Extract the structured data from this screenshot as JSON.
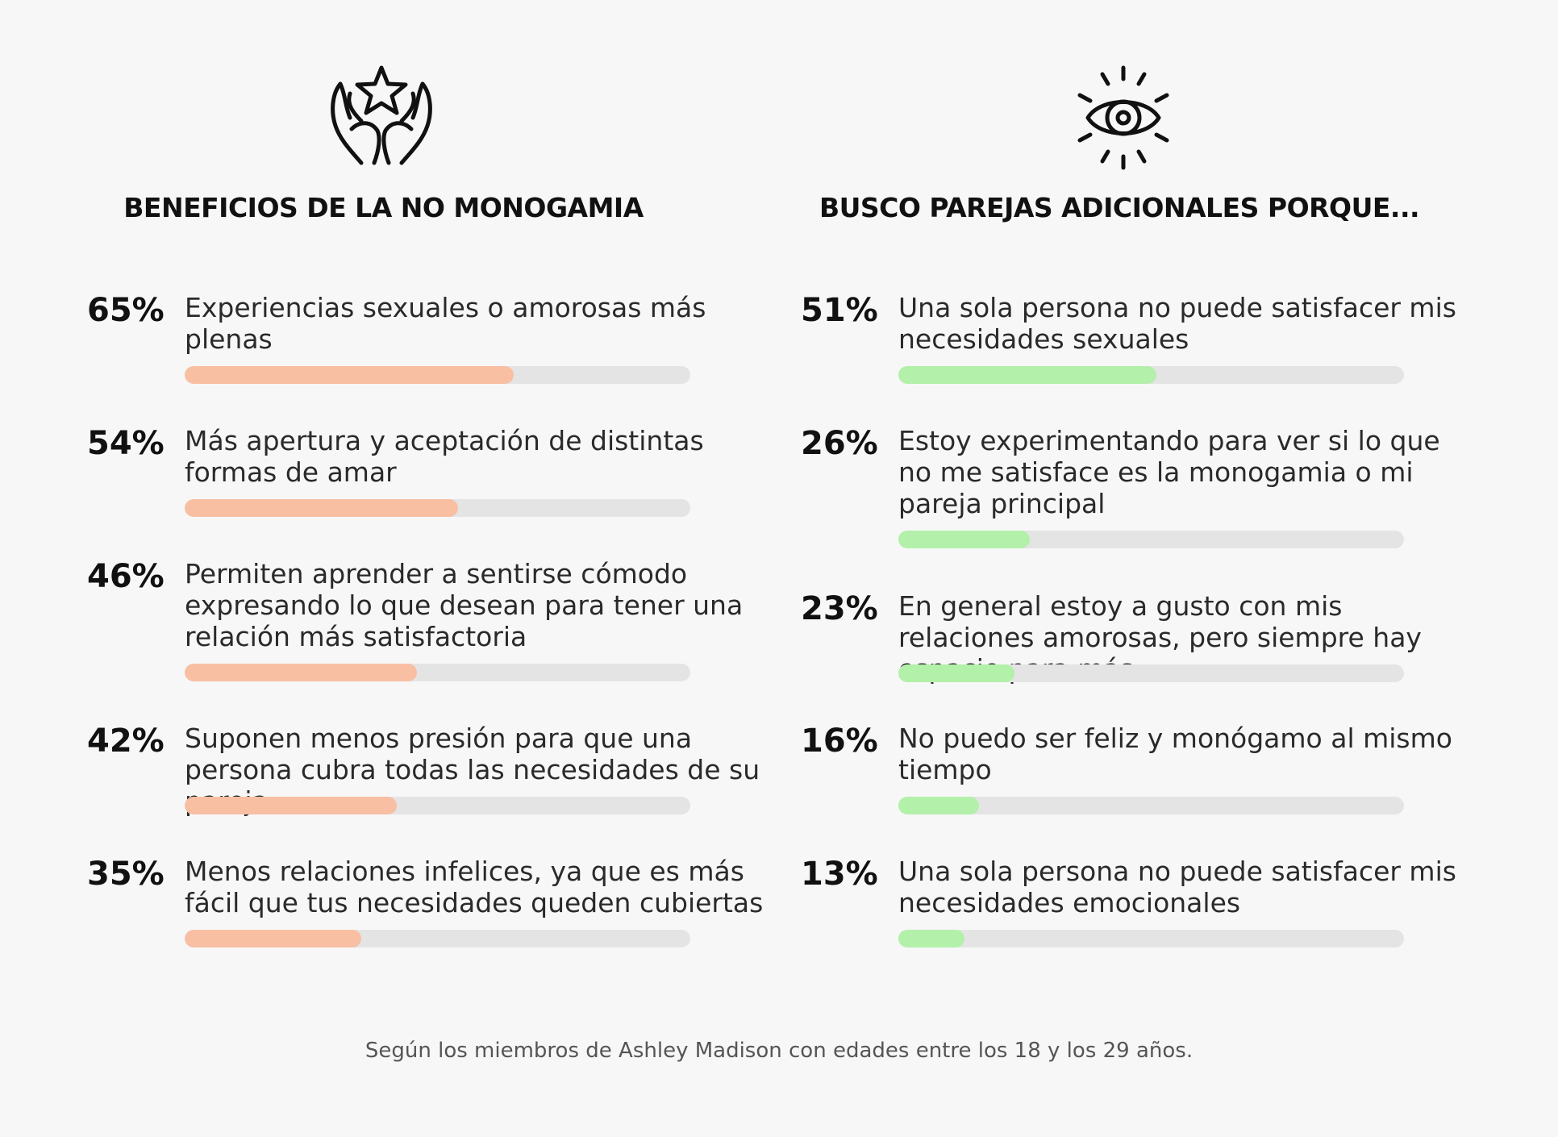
{
  "chart_data": [
    {
      "type": "bar",
      "title": "BENEFICIOS DE LA NO MONOGAMIA",
      "icon": "hands-star-icon",
      "bar_color": "#f8bfa3",
      "track_color": "#e4e4e4",
      "unit": "%",
      "xlim": [
        0,
        100
      ],
      "categories": [
        "Experiencias sexuales o amorosas más plenas",
        "Más apertura y aceptación de distintas formas de amar",
        "Permiten aprender a sentirse cómodo expresando lo que desean para tener una relación más satisfactoria",
        "Suponen menos presión para que una persona cubra todas las necesidades de su pareja",
        "Menos relaciones infelices, ya que es más fácil que tus necesidades queden cubiertas"
      ],
      "values": [
        65,
        54,
        46,
        42,
        35
      ],
      "value_labels": [
        "65%",
        "54%",
        "46%",
        "42%",
        "35%"
      ]
    },
    {
      "type": "bar",
      "title": "BUSCO PAREJAS ADICIONALES PORQUE...",
      "icon": "eye-icon",
      "bar_color": "#b3f0aa",
      "track_color": "#e4e4e4",
      "unit": "%",
      "xlim": [
        0,
        100
      ],
      "categories": [
        "Una sola persona no puede satisfacer mis necesidades sexuales",
        "Estoy experimentando para ver si lo que no me satisface es la monogamia o mi pareja principal",
        "En general estoy a gusto con mis relaciones amorosas, pero siempre hay espacio para más",
        "No puedo ser feliz y monógamo al mismo tiempo",
        "Una sola persona no puede satisfacer mis necesidades emocionales"
      ],
      "values": [
        51,
        26,
        23,
        16,
        13
      ],
      "value_labels": [
        "51%",
        "26%",
        "23%",
        "16%",
        "13%"
      ]
    }
  ],
  "footnote": "Según los miembros de Ashley Madison con edades entre los 18 y los 29 años."
}
